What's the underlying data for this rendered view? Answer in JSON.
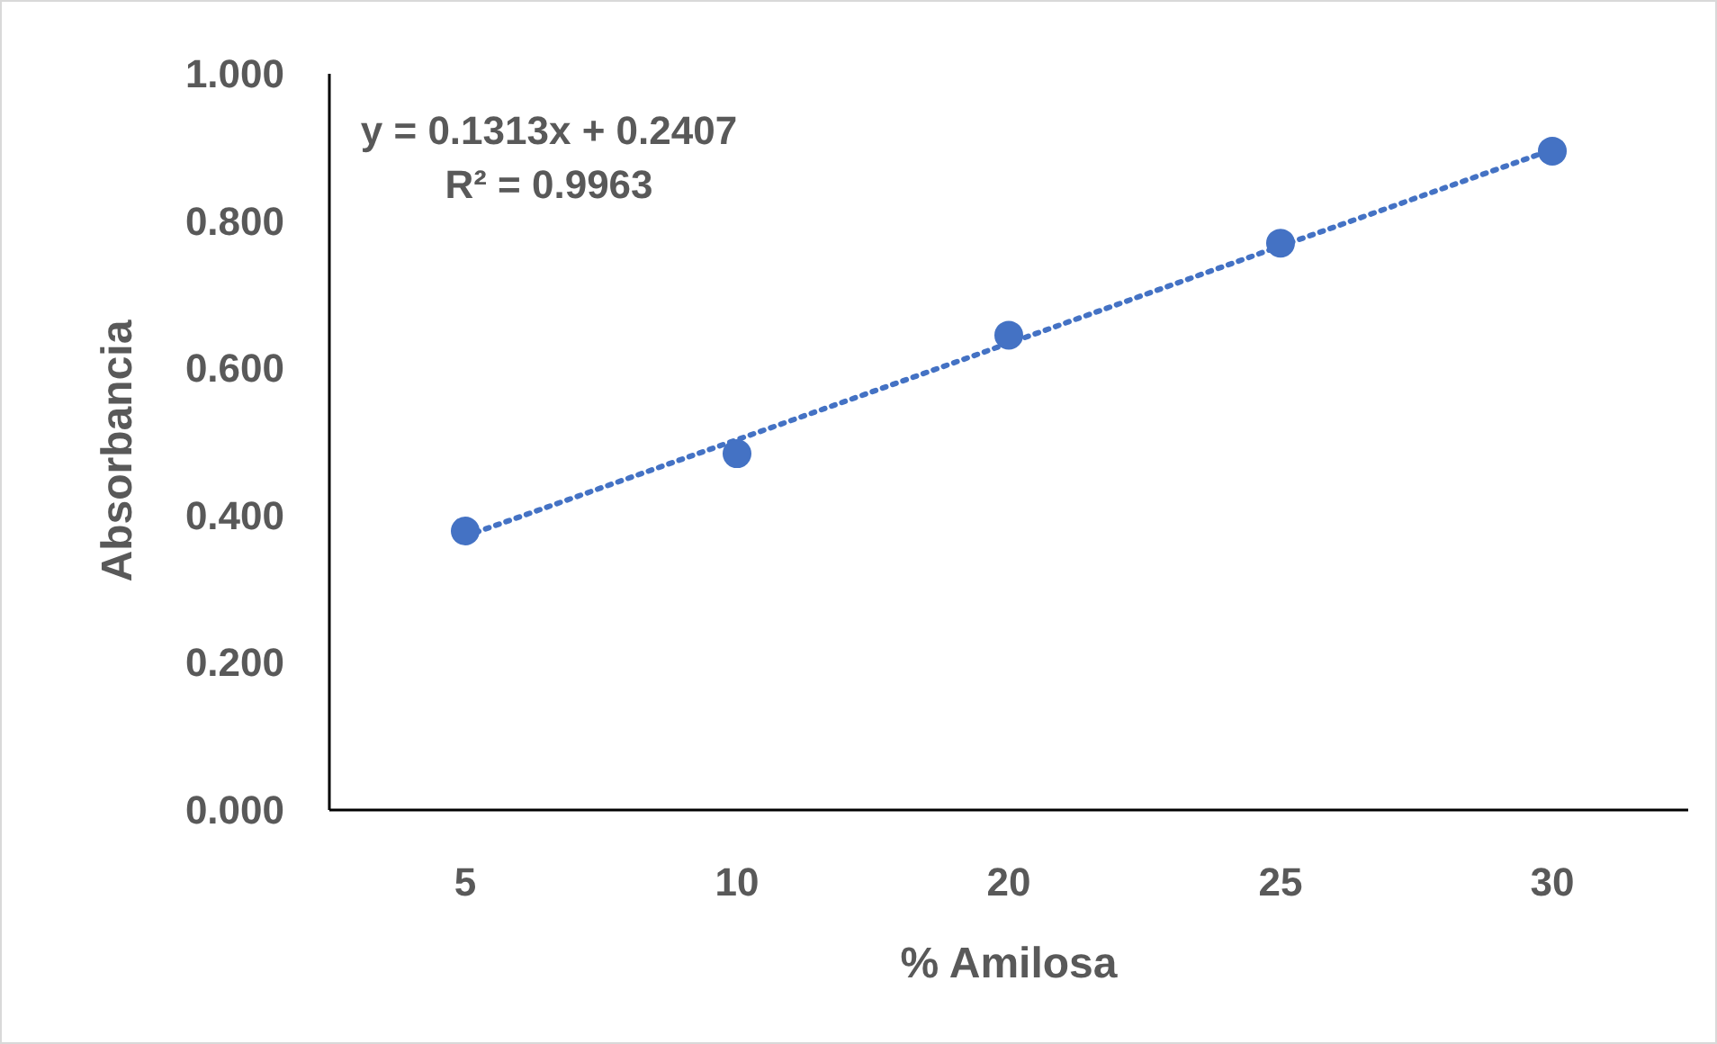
{
  "chart_data": {
    "type": "scatter",
    "xlabel": "% Amilosa",
    "ylabel": "Absorbancia",
    "categories": [
      "5",
      "10",
      "20",
      "25",
      "30"
    ],
    "ylim": [
      0,
      1
    ],
    "yticks": [
      {
        "value": 0,
        "label": "0.000"
      },
      {
        "value": 0.2,
        "label": "0.200"
      },
      {
        "value": 0.4,
        "label": "0.400"
      },
      {
        "value": 0.6,
        "label": "0.600"
      },
      {
        "value": 0.8,
        "label": "0.800"
      },
      {
        "value": 1,
        "label": "1.000"
      }
    ],
    "grid": false,
    "marker": "circle",
    "series": [
      {
        "color": "#4472c4",
        "values": [
          0.379,
          0.484,
          0.645,
          0.77,
          0.895
        ]
      },
      {
        "type": "line",
        "color": "#4472c4",
        "line_style": "dotted",
        "marker": "none",
        "values": [
          0.372,
          0.503,
          0.634,
          0.766,
          0.897
        ]
      }
    ],
    "annotations": [
      "y = 0.1313x + 0.2407",
      "R² = 0.9963"
    ]
  }
}
